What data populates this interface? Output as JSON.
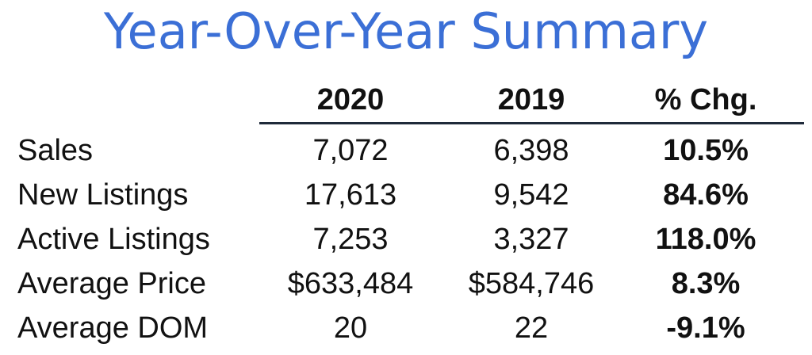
{
  "title": "Year-Over-Year Summary",
  "headers": {
    "col_2020": "2020",
    "col_2019": "2019",
    "col_change": "% Chg."
  },
  "rows": [
    {
      "label": "Sales",
      "v2020": "7,072",
      "v2019": "6,398",
      "change": "10.5%"
    },
    {
      "label": "New Listings",
      "v2020": "17,613",
      "v2019": "9,542",
      "change": "84.6%"
    },
    {
      "label": "Active Listings",
      "v2020": "7,253",
      "v2019": "3,327",
      "change": "118.0%"
    },
    {
      "label": "Average Price",
      "v2020": "$633,484",
      "v2019": "$584,746",
      "change": "8.3%"
    },
    {
      "label": "Average DOM",
      "v2020": "20",
      "v2019": "22",
      "change": "-9.1%"
    }
  ],
  "colors": {
    "title": "#3b6fd6",
    "text": "#111111",
    "rule": "#1f2a3a"
  }
}
